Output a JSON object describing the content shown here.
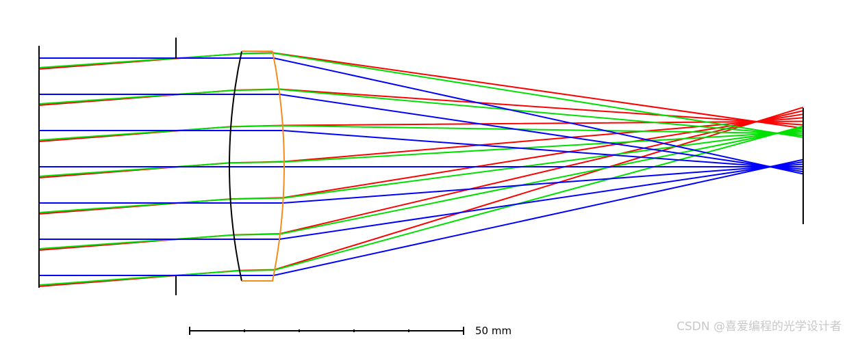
{
  "scale_bar": {
    "label": "50 mm"
  },
  "watermark": "CSDN @喜爱编程的光学设计者"
}
